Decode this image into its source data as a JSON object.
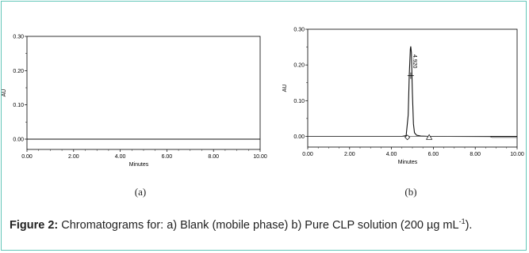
{
  "figure": {
    "panel_a_label": "(a)",
    "panel_b_label": "(b)",
    "caption_label": "Figure 2:",
    "caption_text_1": " Chromatograms for: a) Blank (mobile phase) b) Pure CLP solution (200 µg mL",
    "caption_superscript": "-1",
    "caption_text_2": ")."
  },
  "chart_data": [
    {
      "type": "line",
      "panel": "(a)",
      "title": "",
      "xlabel": "Minutes",
      "ylabel": "AU",
      "xlim": [
        0,
        10
      ],
      "ylim": [
        -0.03,
        0.3
      ],
      "x_ticks": [
        "0.00",
        "2.00",
        "4.00",
        "6.00",
        "8.00",
        "10.00"
      ],
      "y_ticks": [
        "0.00",
        "0.10",
        "0.20",
        "0.30"
      ],
      "series": [
        {
          "x": [
            0,
            10
          ],
          "y": [
            0,
            0
          ]
        }
      ]
    },
    {
      "type": "line",
      "panel": "(b)",
      "title": "",
      "xlabel": "Minutes",
      "ylabel": "AU",
      "xlim": [
        0,
        10
      ],
      "ylim": [
        -0.03,
        0.3
      ],
      "x_ticks": [
        "0.00",
        "2.00",
        "4.00",
        "6.00",
        "8.00",
        "10.00"
      ],
      "y_ticks": [
        "0.00",
        "0.10",
        "0.20",
        "0.30"
      ],
      "peak_label": "4.920",
      "series": [
        {
          "x": [
            0,
            4.5,
            4.7,
            4.8,
            4.85,
            4.9,
            4.92,
            4.95,
            5.0,
            5.05,
            5.1,
            5.2,
            5.4,
            5.8,
            10
          ],
          "y": [
            0,
            0,
            0.002,
            0.06,
            0.17,
            0.245,
            0.252,
            0.235,
            0.12,
            0.035,
            0.01,
            0.003,
            0.001,
            0,
            0
          ]
        },
        {
          "x": [
            0,
            4.76,
            5.8,
            8.7,
            8.8,
            10
          ],
          "y": [
            0,
            0,
            0,
            -0.001,
            -0.003,
            -0.003
          ]
        }
      ],
      "markers": [
        {
          "shape": "diamond",
          "x": 4.76,
          "y": -0.003
        },
        {
          "shape": "triangle",
          "x": 5.8,
          "y": -0.003
        },
        {
          "shape": "plus",
          "x": 4.92,
          "y": 0.17
        }
      ]
    }
  ]
}
